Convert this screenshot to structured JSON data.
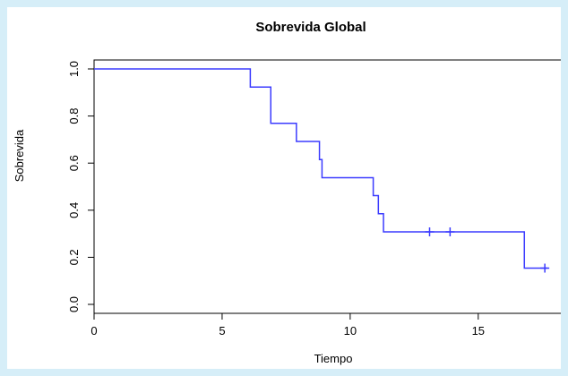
{
  "chart_data": {
    "type": "line",
    "subtype": "kaplan-meier-step",
    "title": "Sobrevida Global",
    "xlabel": "Tiempo",
    "ylabel": "Sobrevida",
    "xlim": [
      0,
      17.7
    ],
    "ylim": [
      0,
      1
    ],
    "x_ticks": [
      0,
      5,
      10,
      15
    ],
    "x_tick_labels": [
      "0",
      "5",
      "10",
      "15"
    ],
    "y_ticks": [
      0,
      0.2,
      0.4,
      0.6,
      0.8,
      1.0
    ],
    "y_tick_labels": [
      "0.0",
      "0.2",
      "0.4",
      "0.6",
      "0.8",
      "1.0"
    ],
    "grid": false,
    "color": "#3b3bff",
    "series": [
      {
        "steps": [
          {
            "x": 0,
            "y": 1.0
          },
          {
            "x": 6.1,
            "y": 0.923
          },
          {
            "x": 6.9,
            "y": 0.769
          },
          {
            "x": 7.9,
            "y": 0.692
          },
          {
            "x": 8.8,
            "y": 0.615
          },
          {
            "x": 8.9,
            "y": 0.538
          },
          {
            "x": 10.9,
            "y": 0.462
          },
          {
            "x": 11.1,
            "y": 0.385
          },
          {
            "x": 11.3,
            "y": 0.308
          },
          {
            "x": 16.8,
            "y": 0.154
          }
        ],
        "end_x": 17.7,
        "censored": [
          {
            "x": 13.1,
            "y": 0.308
          },
          {
            "x": 13.9,
            "y": 0.308
          },
          {
            "x": 17.6,
            "y": 0.154
          }
        ]
      }
    ]
  }
}
